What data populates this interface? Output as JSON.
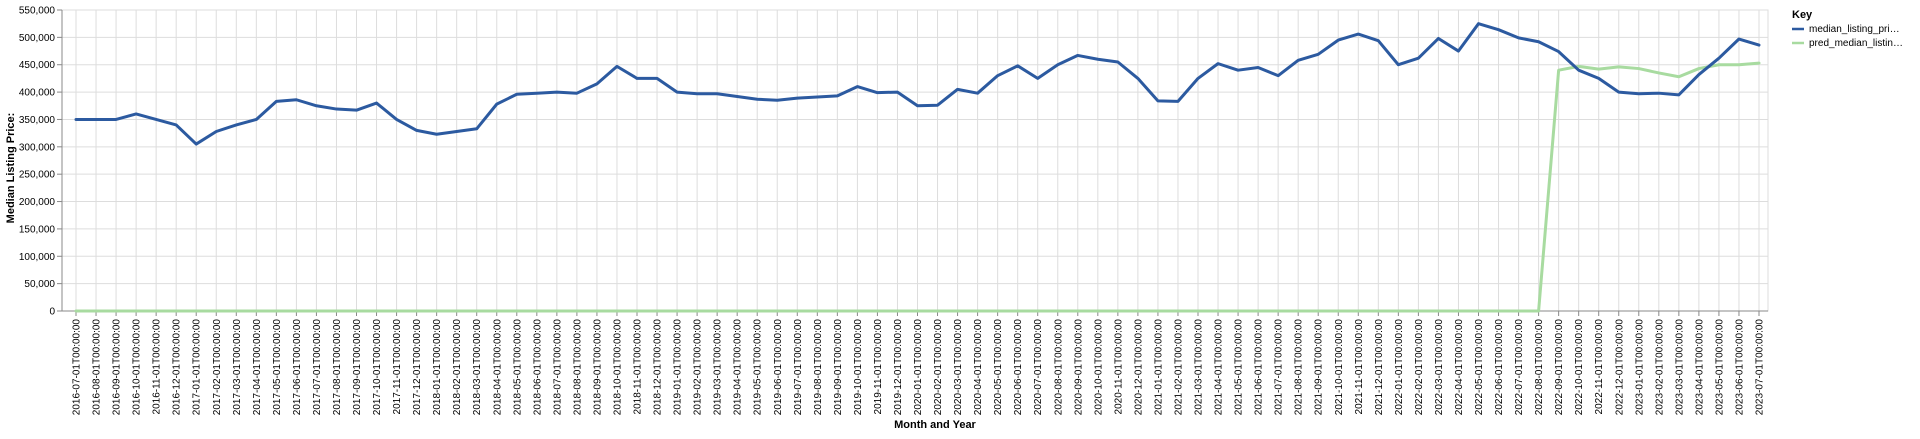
{
  "chart_data": {
    "type": "line",
    "title": "",
    "xlabel": "Month and Year",
    "ylabel": "Median Listing Price:",
    "ylim": [
      0,
      550000
    ],
    "yticks": [
      "0",
      "50,000",
      "100,000",
      "150,000",
      "200,000",
      "250,000",
      "300,000",
      "350,000",
      "400,000",
      "450,000",
      "500,000",
      "550,000"
    ],
    "grid": true,
    "legend": {
      "title": "Key",
      "position": "right"
    },
    "x": [
      "2016-07-01T00:00:00",
      "2016-08-01T00:00:00",
      "2016-09-01T00:00:00",
      "2016-10-01T00:00:00",
      "2016-11-01T00:00:00",
      "2016-12-01T00:00:00",
      "2017-01-01T00:00:00",
      "2017-02-01T00:00:00",
      "2017-03-01T00:00:00",
      "2017-04-01T00:00:00",
      "2017-05-01T00:00:00",
      "2017-06-01T00:00:00",
      "2017-07-01T00:00:00",
      "2017-08-01T00:00:00",
      "2017-09-01T00:00:00",
      "2017-10-01T00:00:00",
      "2017-11-01T00:00:00",
      "2017-12-01T00:00:00",
      "2018-01-01T00:00:00",
      "2018-02-01T00:00:00",
      "2018-03-01T00:00:00",
      "2018-04-01T00:00:00",
      "2018-05-01T00:00:00",
      "2018-06-01T00:00:00",
      "2018-07-01T00:00:00",
      "2018-08-01T00:00:00",
      "2018-09-01T00:00:00",
      "2018-10-01T00:00:00",
      "2018-11-01T00:00:00",
      "2018-12-01T00:00:00",
      "2019-01-01T00:00:00",
      "2019-02-01T00:00:00",
      "2019-03-01T00:00:00",
      "2019-04-01T00:00:00",
      "2019-05-01T00:00:00",
      "2019-06-01T00:00:00",
      "2019-07-01T00:00:00",
      "2019-08-01T00:00:00",
      "2019-09-01T00:00:00",
      "2019-10-01T00:00:00",
      "2019-11-01T00:00:00",
      "2019-12-01T00:00:00",
      "2020-01-01T00:00:00",
      "2020-02-01T00:00:00",
      "2020-03-01T00:00:00",
      "2020-04-01T00:00:00",
      "2020-05-01T00:00:00",
      "2020-06-01T00:00:00",
      "2020-07-01T00:00:00",
      "2020-08-01T00:00:00",
      "2020-09-01T00:00:00",
      "2020-10-01T00:00:00",
      "2020-11-01T00:00:00",
      "2020-12-01T00:00:00",
      "2021-01-01T00:00:00",
      "2021-02-01T00:00:00",
      "2021-03-01T00:00:00",
      "2021-04-01T00:00:00",
      "2021-05-01T00:00:00",
      "2021-06-01T00:00:00",
      "2021-07-01T00:00:00",
      "2021-08-01T00:00:00",
      "2021-09-01T00:00:00",
      "2021-10-01T00:00:00",
      "2021-11-01T00:00:00",
      "2021-12-01T00:00:00",
      "2022-01-01T00:00:00",
      "2022-02-01T00:00:00",
      "2022-03-01T00:00:00",
      "2022-04-01T00:00:00",
      "2022-05-01T00:00:00",
      "2022-06-01T00:00:00",
      "2022-07-01T00:00:00",
      "2022-08-01T00:00:00",
      "2022-09-01T00:00:00",
      "2022-10-01T00:00:00",
      "2022-11-01T00:00:00",
      "2022-12-01T00:00:00",
      "2023-01-01T00:00:00",
      "2023-02-01T00:00:00",
      "2023-03-01T00:00:00",
      "2023-04-01T00:00:00",
      "2023-05-01T00:00:00",
      "2023-06-01T00:00:00",
      "2023-07-01T00:00:00"
    ],
    "series": [
      {
        "name": "median_listing_pri…",
        "color": "#2c5aa0",
        "values": [
          350000,
          350000,
          350000,
          360000,
          350000,
          340000,
          305000,
          328000,
          340000,
          350000,
          383000,
          386000,
          375000,
          369000,
          367000,
          380000,
          350000,
          330000,
          323000,
          328000,
          333000,
          378000,
          396000,
          398000,
          400000,
          398000,
          415000,
          447000,
          425000,
          425000,
          400000,
          397000,
          397000,
          392000,
          387000,
          385000,
          389000,
          391000,
          393000,
          410000,
          399000,
          400000,
          375000,
          376000,
          405000,
          398000,
          430000,
          448000,
          425000,
          450000,
          467000,
          460000,
          455000,
          425000,
          384000,
          383000,
          425000,
          452000,
          440000,
          445000,
          430000,
          458000,
          469000,
          495000,
          506000,
          494000,
          450000,
          462000,
          498000,
          475000,
          525000,
          514000,
          499000,
          492000,
          474000,
          440000,
          425000,
          400000,
          397000,
          398000,
          395000,
          432000,
          462000,
          497000,
          486000
        ]
      },
      {
        "name": "pred_median_listin…",
        "color": "#a8dba0",
        "values": [
          0,
          0,
          0,
          0,
          0,
          0,
          0,
          0,
          0,
          0,
          0,
          0,
          0,
          0,
          0,
          0,
          0,
          0,
          0,
          0,
          0,
          0,
          0,
          0,
          0,
          0,
          0,
          0,
          0,
          0,
          0,
          0,
          0,
          0,
          0,
          0,
          0,
          0,
          0,
          0,
          0,
          0,
          0,
          0,
          0,
          0,
          0,
          0,
          0,
          0,
          0,
          0,
          0,
          0,
          0,
          0,
          0,
          0,
          0,
          0,
          0,
          0,
          0,
          0,
          0,
          0,
          0,
          0,
          0,
          0,
          0,
          0,
          0,
          0,
          440000,
          447000,
          442000,
          446000,
          443000,
          435000,
          428000,
          443000,
          450000,
          450000,
          453000
        ]
      }
    ]
  }
}
